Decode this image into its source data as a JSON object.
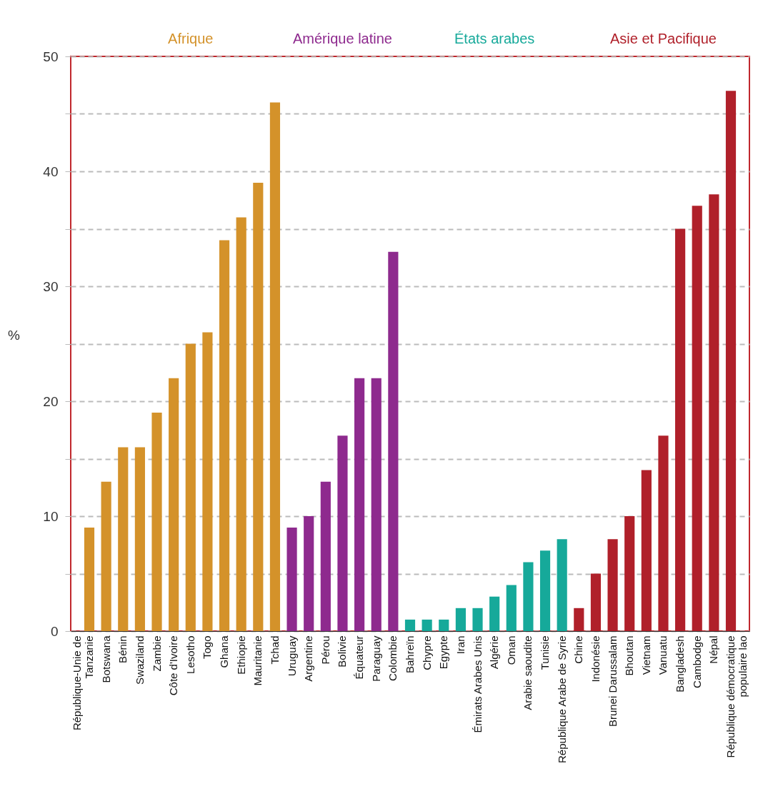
{
  "chart_data": {
    "type": "bar",
    "ylabel": "%",
    "categories": [
      "République-Unie de Tanzanie",
      "Botswana",
      "Bénin",
      "Swaziland",
      "Zambie",
      "Côte d'Ivoire",
      "Lesotho",
      "Togo",
      "Ghana",
      "Ethiopie",
      "Mauritanie",
      "Tchad",
      "Uruguay",
      "Argentine",
      "Pérou",
      "Bolivie",
      "Équateur",
      "Paraguay",
      "Colombie",
      "Bahreïn",
      "Chypre",
      "Egypte",
      "Iran",
      "Émirats Arabes Unis",
      "Algérie",
      "Oman",
      "Arabie saoudite",
      "Tunisie",
      "République Arabe de Syrie",
      "Chine",
      "Indonésie",
      "Brunei Darussalam",
      "Bhoutan",
      "Vietnam",
      "Vanuatu",
      "Bangladesh",
      "Cambodge",
      "Népal",
      "République démocratique populaire lao"
    ],
    "series": [
      {
        "name": "Afrique",
        "color": "#d4922a",
        "values": [
          9,
          13,
          16,
          16,
          19,
          22,
          25,
          26,
          34,
          36,
          39,
          46,
          null,
          null,
          null,
          null,
          null,
          null,
          null,
          null,
          null,
          null,
          null,
          null,
          null,
          null,
          null,
          null,
          null,
          null,
          null,
          null,
          null,
          null,
          null,
          null,
          null,
          null,
          null
        ]
      },
      {
        "name": "Amérique latine",
        "color": "#8e2a8e",
        "values": [
          null,
          null,
          null,
          null,
          null,
          null,
          null,
          null,
          null,
          null,
          null,
          null,
          9,
          10,
          13,
          17,
          22,
          22,
          33,
          null,
          null,
          null,
          null,
          null,
          null,
          null,
          null,
          null,
          null,
          null,
          null,
          null,
          null,
          null,
          null,
          null,
          null,
          null,
          null
        ]
      },
      {
        "name": "États arabes",
        "color": "#16a99a",
        "values": [
          null,
          null,
          null,
          null,
          null,
          null,
          null,
          null,
          null,
          null,
          null,
          null,
          null,
          null,
          null,
          null,
          null,
          null,
          null,
          1,
          1,
          1,
          2,
          2,
          3,
          4,
          6,
          7,
          8,
          null,
          null,
          null,
          null,
          null,
          null,
          null,
          null,
          null,
          null
        ]
      },
      {
        "name": "Asie et Pacifique",
        "color": "#b0202a",
        "values": [
          null,
          null,
          null,
          null,
          null,
          null,
          null,
          null,
          null,
          null,
          null,
          null,
          null,
          null,
          null,
          null,
          null,
          null,
          null,
          null,
          null,
          null,
          null,
          null,
          null,
          null,
          null,
          null,
          null,
          2,
          5,
          8,
          10,
          14,
          17,
          35,
          37,
          38,
          47
        ]
      }
    ],
    "ylim": [
      0,
      50
    ],
    "yticks": [
      0,
      {
        "value": 5,
        "label": null
      },
      10,
      {
        "value": 15,
        "label": null
      },
      20,
      {
        "value": 25,
        "label": null
      },
      30,
      {
        "value": 35,
        "label": null
      },
      40,
      {
        "value": 45,
        "label": null
      },
      50
    ],
    "grid": "y"
  }
}
